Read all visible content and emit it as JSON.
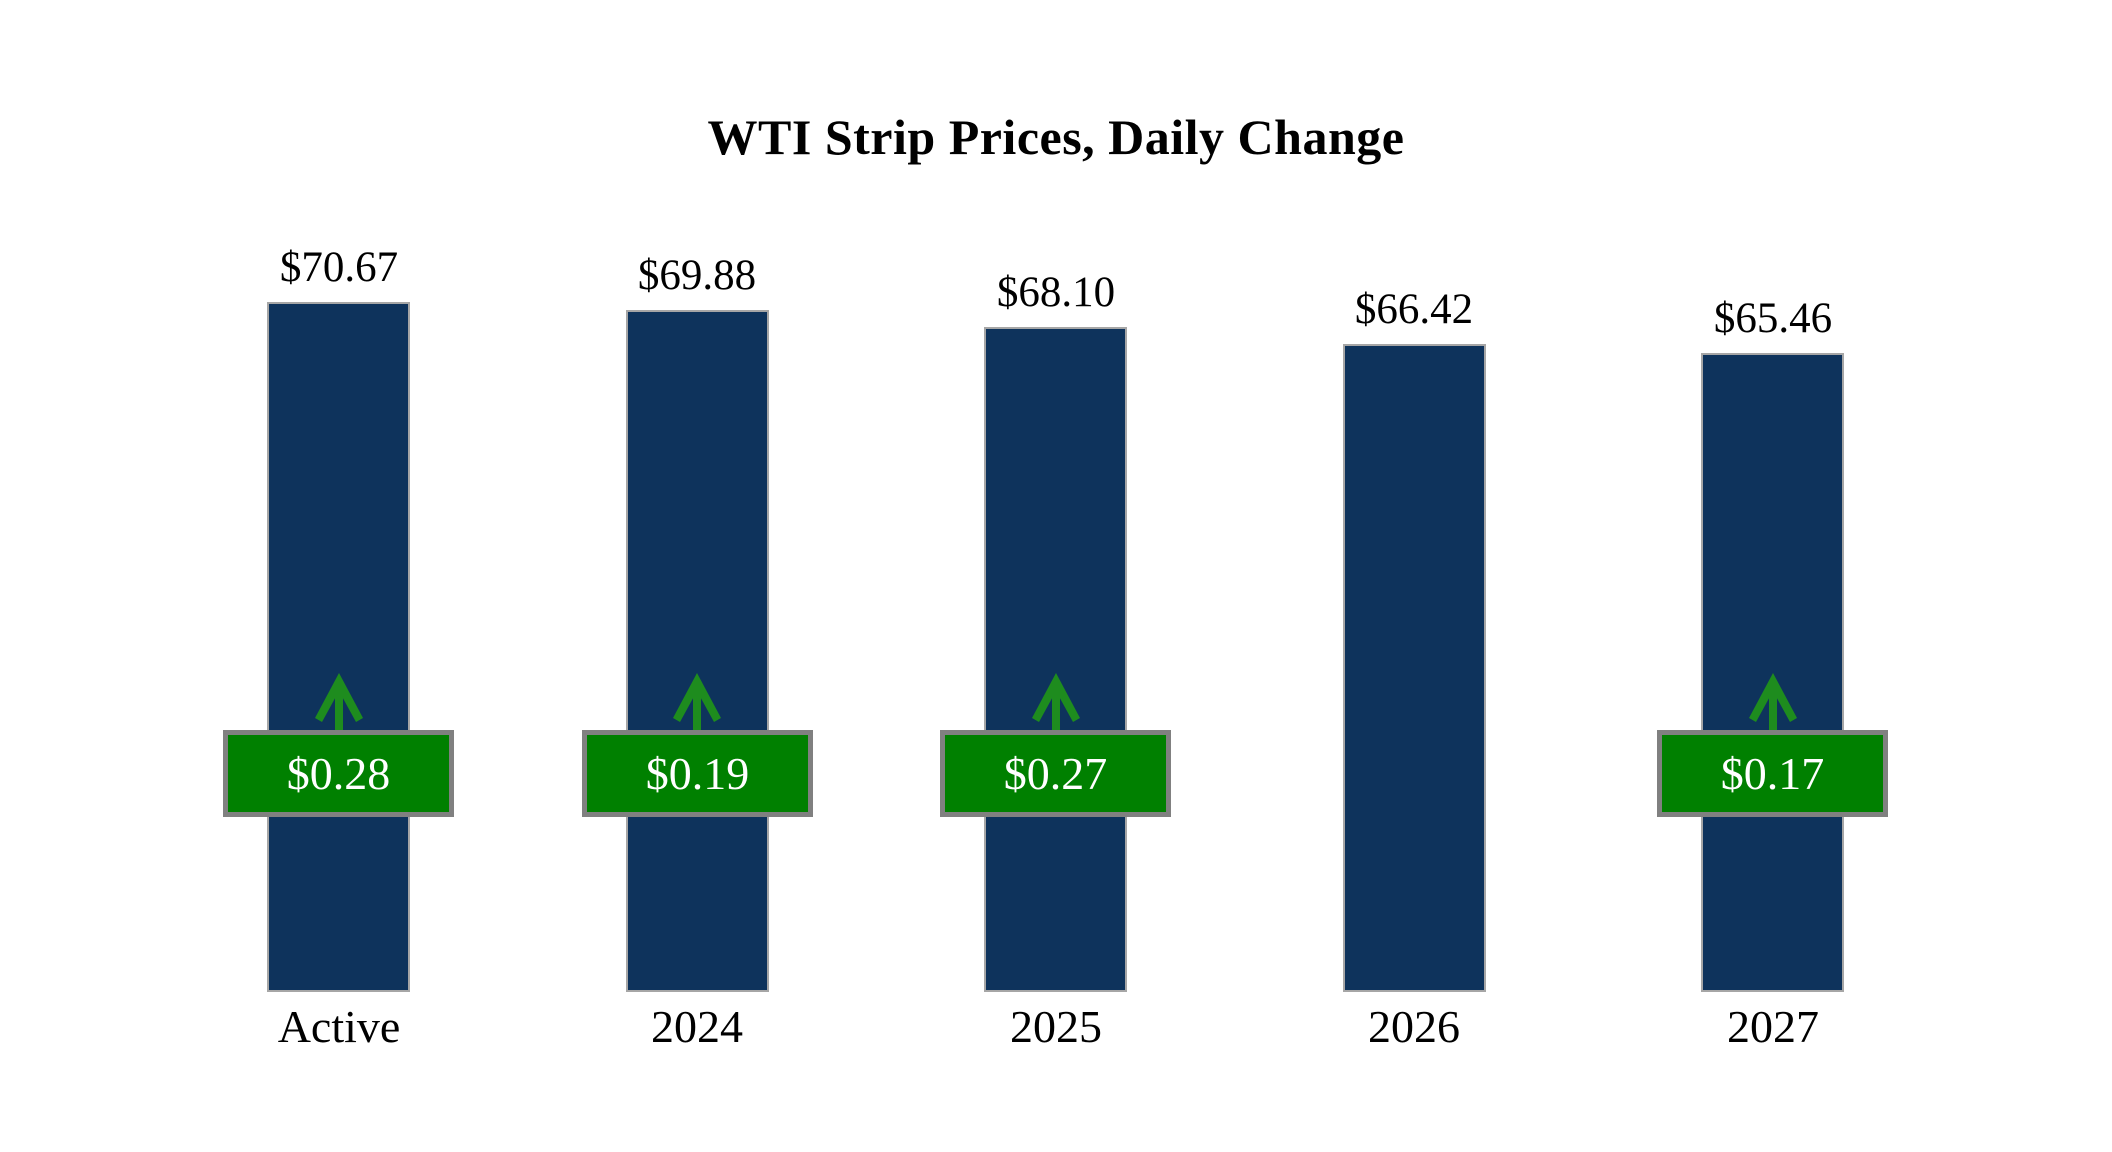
{
  "chart_data": {
    "type": "bar",
    "title": "WTI Strip Prices, Daily Change",
    "categories": [
      "Active",
      "2024",
      "2025",
      "2026",
      "2027"
    ],
    "series": [
      {
        "name": "strip_price",
        "values": [
          70.67,
          69.88,
          68.1,
          66.42,
          65.46
        ],
        "labels": [
          "$70.67",
          "$69.88",
          "$68.10",
          "$66.42",
          "$65.46"
        ]
      },
      {
        "name": "daily_change",
        "values": [
          0.28,
          0.19,
          0.27,
          null,
          0.17
        ],
        "labels": [
          "$0.28",
          "$0.19",
          "$0.27",
          null,
          "$0.17"
        ]
      }
    ],
    "ylim": [
      0,
      72.5
    ],
    "grid": false,
    "legend": "none",
    "xlabel": "",
    "ylabel": "",
    "colors": {
      "background": "#ffffff",
      "bar_fill": "#0e335c",
      "bar_border": "#a6a6a6",
      "badge_fill": "#008000",
      "badge_border": "#808080",
      "badge_text": "#ffffff",
      "arrow": "#1e8c1e",
      "label_text": "#000000"
    }
  }
}
